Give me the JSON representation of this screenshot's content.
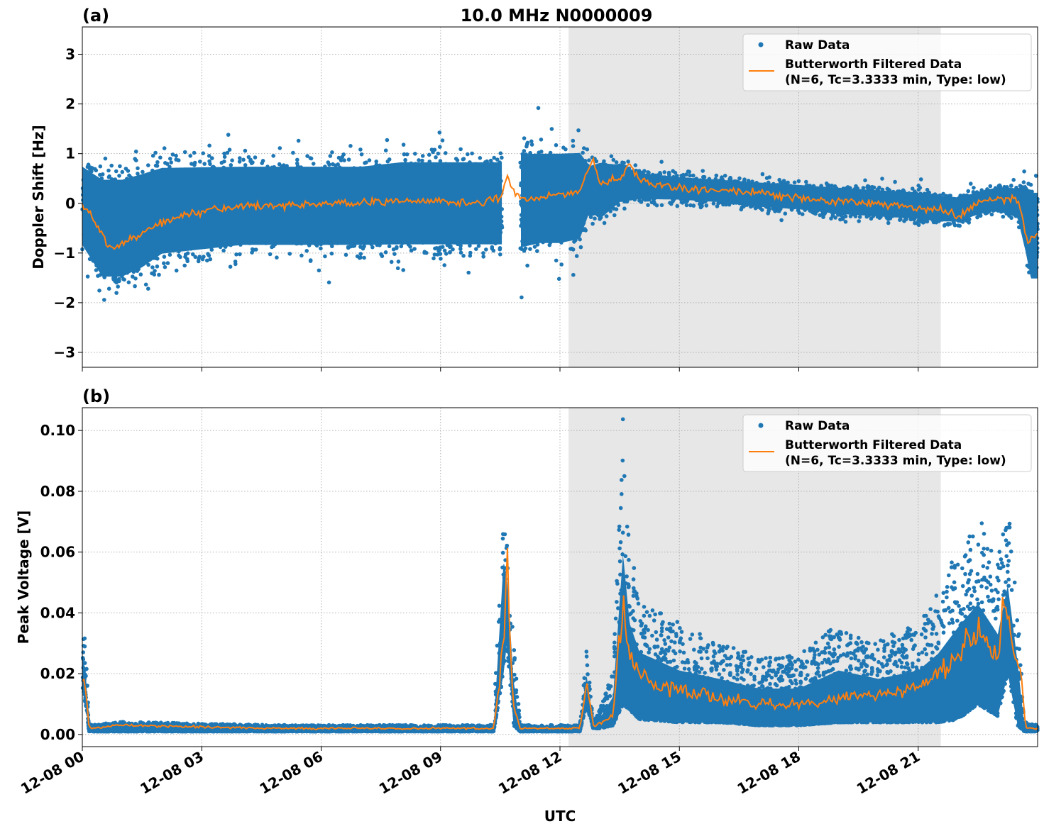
{
  "chart_data": [
    {
      "type": "scatter",
      "panel_label": "(a)",
      "title": "10.0 MHz N0000009",
      "xlabel": "",
      "ylabel": "Doppler Shift [Hz]",
      "xlim": [
        "12-08 00:00",
        "12-09 00:00"
      ],
      "ylim": [
        -3.3,
        3.55
      ],
      "yticks": [
        "−3",
        "−2",
        "−1",
        "0",
        "1",
        "2",
        "3"
      ],
      "ytick_values": [
        -3,
        -2,
        -1,
        0,
        1,
        2,
        3
      ],
      "grid": true,
      "legend": "top-right",
      "shaded_interval": [
        "12-08 12:13",
        "12-08 21:34"
      ],
      "series": [
        {
          "name": "Raw Data",
          "color": "#1f77b4",
          "x": [
            "00:00",
            "00:30",
            "01:00",
            "01:30",
            "02:00",
            "03:00",
            "04:00",
            "05:00",
            "06:00",
            "07:00",
            "08:00",
            "09:00",
            "10:00",
            "10:33",
            "10:50",
            "11:00",
            "11:30",
            "12:00",
            "12:30",
            "12:45",
            "13:00",
            "13:30",
            "14:00",
            "15:00",
            "16:00",
            "17:00",
            "18:00",
            "19:00",
            "20:00",
            "21:00",
            "21:30",
            "22:00",
            "22:30",
            "23:00",
            "23:30",
            "23:42",
            "23:50",
            "24:00"
          ],
          "lower": [
            -1.1,
            -1.8,
            -1.8,
            -1.6,
            -1.3,
            -1.2,
            -1.1,
            -1.1,
            -1.1,
            -1.1,
            -1.1,
            -1.1,
            -1.1,
            -1.1,
            null,
            -1.2,
            -1.1,
            -1.1,
            -1.0,
            -0.3,
            -0.5,
            -0.1,
            0.0,
            0.0,
            -0.05,
            -0.15,
            -0.2,
            -0.3,
            -0.35,
            -0.4,
            -0.45,
            -0.45,
            -0.3,
            -0.2,
            -0.4,
            -1.2,
            -1.8,
            -1.8
          ],
          "upper": [
            1.0,
            0.8,
            0.8,
            0.9,
            1.0,
            1.0,
            1.0,
            1.0,
            1.0,
            1.0,
            1.1,
            1.1,
            1.1,
            1.1,
            null,
            1.3,
            1.3,
            1.3,
            1.3,
            0.9,
            1.0,
            0.9,
            0.7,
            0.6,
            0.55,
            0.5,
            0.45,
            0.4,
            0.35,
            0.3,
            0.25,
            0.2,
            0.3,
            0.4,
            0.4,
            0.6,
            0.5,
            0.5
          ]
        },
        {
          "name": "Butterworth Filtered Data\n(N=6, Tc=3.3333 min, Type: low)",
          "color": "#ff7f0e",
          "x": [
            "00:00",
            "00:20",
            "00:40",
            "01:00",
            "01:30",
            "02:00",
            "02:30",
            "03:00",
            "04:00",
            "05:00",
            "06:00",
            "07:00",
            "08:00",
            "09:00",
            "10:00",
            "10:30",
            "10:40",
            "10:50",
            "11:00",
            "11:30",
            "12:00",
            "12:30",
            "12:40",
            "12:50",
            "13:00",
            "13:30",
            "13:45",
            "14:00",
            "14:30",
            "15:00",
            "16:00",
            "17:00",
            "18:00",
            "19:00",
            "20:00",
            "21:00",
            "21:30",
            "22:00",
            "22:30",
            "23:00",
            "23:30",
            "23:45",
            "24:00"
          ],
          "y": [
            0.0,
            -0.4,
            -0.9,
            -0.8,
            -0.6,
            -0.4,
            -0.25,
            -0.15,
            -0.05,
            -0.05,
            0.0,
            0.0,
            0.05,
            0.05,
            0.0,
            0.1,
            0.55,
            0.3,
            0.1,
            0.1,
            0.2,
            0.2,
            0.6,
            0.9,
            0.4,
            0.5,
            0.75,
            0.45,
            0.35,
            0.3,
            0.25,
            0.2,
            0.1,
            0.05,
            0.0,
            -0.1,
            -0.1,
            -0.25,
            0.0,
            0.1,
            0.1,
            -0.8,
            -0.6
          ]
        }
      ]
    },
    {
      "type": "scatter",
      "panel_label": "(b)",
      "xlabel": "UTC",
      "ylabel": "Peak Voltage [V]",
      "xlim": [
        "12-08 00:00",
        "12-09 00:00"
      ],
      "ylim": [
        -0.004,
        0.1075
      ],
      "yticks": [
        "0.00",
        "0.02",
        "0.04",
        "0.06",
        "0.08",
        "0.10"
      ],
      "ytick_values": [
        0,
        0.02,
        0.04,
        0.06,
        0.08,
        0.1
      ],
      "xticks": [
        "12-08 00",
        "12-08 03",
        "12-08 06",
        "12-08 09",
        "12-08 12",
        "12-08 15",
        "12-08 18",
        "12-08 21"
      ],
      "xtick_values": [
        "00:00",
        "03:00",
        "06:00",
        "09:00",
        "12:00",
        "15:00",
        "18:00",
        "21:00"
      ],
      "grid": true,
      "legend": "top-right",
      "shaded_interval": [
        "12-08 12:13",
        "12-08 21:34"
      ],
      "series": [
        {
          "name": "Raw Data",
          "color": "#1f77b4",
          "x": [
            "00:00",
            "00:05",
            "00:10",
            "01:00",
            "05:00",
            "09:00",
            "10:20",
            "10:35",
            "10:40",
            "10:50",
            "11:00",
            "12:00",
            "12:30",
            "12:40",
            "12:50",
            "13:00",
            "13:20",
            "13:35",
            "13:45",
            "14:00",
            "15:00",
            "16:00",
            "17:00",
            "18:00",
            "19:00",
            "20:00",
            "21:00",
            "21:30",
            "22:00",
            "22:30",
            "23:00",
            "23:15",
            "23:30",
            "23:40",
            "24:00"
          ],
          "lower": [
            0.015,
            0.01,
            0.001,
            0.001,
            0.001,
            0.001,
            0.001,
            0.02,
            0.03,
            0.003,
            0.001,
            0.001,
            0.001,
            0.01,
            0.002,
            0.002,
            0.003,
            0.01,
            0.008,
            0.005,
            0.004,
            0.004,
            0.003,
            0.003,
            0.004,
            0.004,
            0.004,
            0.004,
            0.005,
            0.01,
            0.006,
            0.02,
            0.003,
            0.001,
            0.001
          ],
          "upper": [
            0.034,
            0.03,
            0.003,
            0.004,
            0.003,
            0.003,
            0.003,
            0.087,
            0.07,
            0.03,
            0.003,
            0.003,
            0.003,
            0.028,
            0.004,
            0.008,
            0.02,
            0.1,
            0.06,
            0.045,
            0.035,
            0.03,
            0.025,
            0.025,
            0.035,
            0.03,
            0.035,
            0.045,
            0.06,
            0.07,
            0.055,
            0.073,
            0.04,
            0.004,
            0.003
          ]
        },
        {
          "name": "Butterworth Filtered Data\n(N=6, Tc=3.3333 min, Type: low)",
          "color": "#ff7f0e",
          "x": [
            "00:00",
            "00:05",
            "00:10",
            "01:00",
            "05:00",
            "09:00",
            "10:20",
            "10:35",
            "10:40",
            "10:50",
            "11:00",
            "12:00",
            "12:30",
            "12:40",
            "12:50",
            "13:00",
            "13:20",
            "13:35",
            "13:45",
            "14:00",
            "14:30",
            "15:00",
            "16:00",
            "17:00",
            "18:00",
            "19:00",
            "20:00",
            "21:00",
            "21:30",
            "22:00",
            "22:30",
            "23:00",
            "23:10",
            "23:20",
            "23:35",
            "23:42",
            "24:00"
          ],
          "y": [
            0.02,
            0.015,
            0.002,
            0.003,
            0.002,
            0.002,
            0.002,
            0.03,
            0.055,
            0.01,
            0.002,
            0.002,
            0.002,
            0.017,
            0.003,
            0.004,
            0.006,
            0.045,
            0.025,
            0.02,
            0.015,
            0.015,
            0.012,
            0.01,
            0.01,
            0.012,
            0.013,
            0.015,
            0.02,
            0.025,
            0.035,
            0.025,
            0.044,
            0.03,
            0.02,
            0.002,
            0.002
          ]
        }
      ]
    }
  ]
}
